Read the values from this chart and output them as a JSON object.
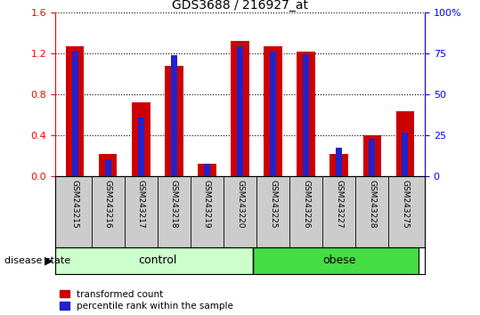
{
  "title": "GDS3688 / 216927_at",
  "samples": [
    "GSM243215",
    "GSM243216",
    "GSM243217",
    "GSM243218",
    "GSM243219",
    "GSM243220",
    "GSM243225",
    "GSM243226",
    "GSM243227",
    "GSM243228",
    "GSM243275"
  ],
  "red_values": [
    1.27,
    0.22,
    0.72,
    1.08,
    0.12,
    1.32,
    1.27,
    1.22,
    0.22,
    0.4,
    0.64
  ],
  "blue_values": [
    1.22,
    0.17,
    0.58,
    1.18,
    0.12,
    1.27,
    1.22,
    1.19,
    0.28,
    0.37,
    0.43
  ],
  "ylim_left": [
    0,
    1.6
  ],
  "ylim_right": [
    0,
    100
  ],
  "yticks_left": [
    0,
    0.4,
    0.8,
    1.2,
    1.6
  ],
  "yticks_right": [
    0,
    25,
    50,
    75,
    100
  ],
  "n_control": 6,
  "n_obese": 5,
  "control_label": "control",
  "obese_label": "obese",
  "disease_state_label": "disease state",
  "legend_red": "transformed count",
  "legend_blue": "percentile rank within the sample",
  "bar_color_red": "#CC0000",
  "bar_color_blue": "#2222CC",
  "control_bg": "#CCFFCC",
  "obese_bg": "#44DD44",
  "tick_label_area_bg": "#CCCCCC",
  "bar_width": 0.55,
  "blue_bar_width": 0.18
}
